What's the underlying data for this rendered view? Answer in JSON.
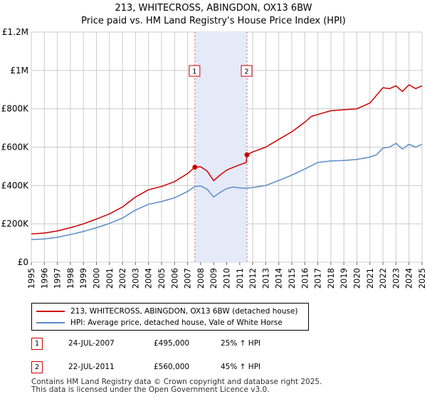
{
  "header": {
    "title": "213, WHITECROSS, ABINGDON, OX13 6BW",
    "subtitle": "Price paid vs. HM Land Registry's House Price Index (HPI)"
  },
  "chart_data": {
    "type": "line",
    "title": "213, WHITECROSS, ABINGDON, OX13 6BW",
    "subtitle": "Price paid vs. HM Land Registry's House Price Index (HPI)",
    "xlabel": "",
    "ylabel": "",
    "xlim": [
      1995,
      2025
    ],
    "ylim": [
      0,
      1200000
    ],
    "grid": true,
    "x_ticks": [
      "1995",
      "1996",
      "1997",
      "1998",
      "1999",
      "2000",
      "2001",
      "2002",
      "2003",
      "2004",
      "2005",
      "2006",
      "2007",
      "2008",
      "2009",
      "2010",
      "2011",
      "2012",
      "2013",
      "2014",
      "2015",
      "2016",
      "2017",
      "2018",
      "2019",
      "2020",
      "2021",
      "2022",
      "2023",
      "2024",
      "2025"
    ],
    "y_ticks": [
      {
        "value": 0,
        "label": "£0"
      },
      {
        "value": 200000,
        "label": "£200K"
      },
      {
        "value": 400000,
        "label": "£400K"
      },
      {
        "value": 600000,
        "label": "£600K"
      },
      {
        "value": 800000,
        "label": "£800K"
      },
      {
        "value": 1000000,
        "label": "£1M"
      },
      {
        "value": 1200000,
        "label": "£1.2M"
      }
    ],
    "shaded_period": {
      "start": 2007.56,
      "end": 2011.56
    },
    "series": [
      {
        "name": "213, WHITECROSS, ABINGDON, OX13 6BW (detached house)",
        "color": "#cc0000",
        "x": [
          1995,
          1996,
          1997,
          1998,
          1999,
          2000,
          2001,
          2002,
          2003,
          2004,
          2005,
          2006,
          2007,
          2007.56,
          2008,
          2008.5,
          2009,
          2009.5,
          2010,
          2010.5,
          2011,
          2011.5,
          2011.56,
          2012,
          2013,
          2014,
          2015,
          2016,
          2016.5,
          2017,
          2018,
          2019,
          2020,
          2021,
          2021.5,
          2022,
          2022.5,
          2023,
          2023.5,
          2024,
          2024.5,
          2025
        ],
        "values": [
          148000,
          152000,
          163000,
          180000,
          200000,
          225000,
          252000,
          288000,
          340000,
          378000,
          395000,
          420000,
          462000,
          495000,
          498000,
          475000,
          425000,
          455000,
          480000,
          495000,
          508000,
          520000,
          560000,
          575000,
          600000,
          640000,
          680000,
          730000,
          760000,
          770000,
          790000,
          795000,
          800000,
          830000,
          870000,
          910000,
          905000,
          920000,
          890000,
          925000,
          905000,
          920000
        ]
      },
      {
        "name": "HPI: Average price, detached house, Vale of White Horse",
        "color": "#5b8cc7",
        "x": [
          1995,
          1996,
          1997,
          1998,
          1999,
          2000,
          2001,
          2002,
          2003,
          2004,
          2005,
          2006,
          2007,
          2007.56,
          2008,
          2008.5,
          2009,
          2009.5,
          2010,
          2010.5,
          2011,
          2011.5,
          2012,
          2013,
          2014,
          2015,
          2016,
          2017,
          2018,
          2019,
          2020,
          2021,
          2021.5,
          2022,
          2022.5,
          2023,
          2023.5,
          2024,
          2024.5,
          2025
        ],
        "values": [
          118000,
          121000,
          130000,
          144000,
          160000,
          180000,
          202000,
          230000,
          272000,
          302000,
          316000,
          336000,
          369000,
          395000,
          398000,
          380000,
          340000,
          364000,
          384000,
          392000,
          387000,
          386000,
          389000,
          400000,
          426000,
          454000,
          486000,
          520000,
          528000,
          530000,
          536000,
          548000,
          560000,
          595000,
          600000,
          620000,
          590000,
          615000,
          600000,
          615000
        ]
      }
    ],
    "markers": [
      {
        "label": "1",
        "x": 2007.56,
        "y": 495000
      },
      {
        "label": "2",
        "x": 2011.56,
        "y": 560000
      }
    ]
  },
  "legend": {
    "items": [
      {
        "label": "213, WHITECROSS, ABINGDON, OX13 6BW (detached house)",
        "color": "#cc0000"
      },
      {
        "label": "HPI: Average price, detached house, Vale of White Horse",
        "color": "#5b8cc7"
      }
    ]
  },
  "transactions": [
    {
      "num": "1",
      "date": "24-JUL-2007",
      "price": "£495,000",
      "hpi": "25% ↑ HPI"
    },
    {
      "num": "2",
      "date": "22-JUL-2011",
      "price": "£560,000",
      "hpi": "45% ↑ HPI"
    }
  ],
  "footer": {
    "line1": "Contains HM Land Registry data © Crown copyright and database right 2025.",
    "line2": "This data is licensed under the Open Government Licence v3.0."
  }
}
